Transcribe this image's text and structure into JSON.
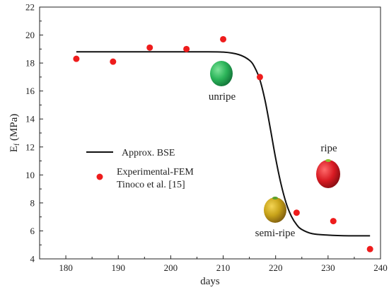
{
  "chart_data": {
    "type": "scatter",
    "xlabel": "days",
    "ylabel_main": "E",
    "ylabel_sub": "f",
    "ylabel_rest": " (MPa)",
    "xlim": [
      175,
      240
    ],
    "ylim": [
      4,
      22
    ],
    "xticks": [
      180,
      190,
      200,
      210,
      220,
      230,
      240
    ],
    "yticks": [
      4,
      6,
      8,
      10,
      12,
      14,
      16,
      18,
      20,
      22
    ],
    "grid": false,
    "legend_position": "left",
    "series": [
      {
        "name": "Approx. BSE",
        "kind": "line",
        "color": "#111111",
        "x": [
          182,
          190,
          200,
          205,
          210,
          213,
          215,
          216,
          217,
          218,
          219,
          220,
          221,
          222,
          223,
          224,
          225,
          227,
          230,
          234,
          238
        ],
        "y": [
          18.8,
          18.8,
          18.8,
          18.8,
          18.78,
          18.6,
          18.2,
          17.7,
          16.8,
          15.3,
          13.3,
          11.2,
          9.4,
          8.0,
          7.05,
          6.45,
          6.1,
          5.8,
          5.7,
          5.65,
          5.65
        ]
      },
      {
        "name": "Experimental-FEM",
        "name_line2": "Tinoco et al. [15]",
        "kind": "scatter",
        "color": "#ee1c1c",
        "x": [
          182,
          189,
          196,
          203,
          210,
          217,
          224,
          231,
          238
        ],
        "y": [
          18.3,
          18.1,
          19.1,
          19.0,
          19.7,
          17.0,
          7.3,
          6.7,
          4.7
        ]
      }
    ],
    "annotations": [
      {
        "text": "unripe",
        "icon": "unripe-papaya-icon",
        "x": 210,
        "y": 14.1,
        "color": "#2cb55a"
      },
      {
        "text": "semi-ripe",
        "icon": "semi-ripe-papaya-icon",
        "x": 221,
        "y": 3.7,
        "color": "#c9a41a"
      },
      {
        "text": "ripe",
        "icon": "ripe-papaya-icon",
        "x": 231.2,
        "y": 11.6,
        "color": "#d81a22"
      }
    ]
  }
}
